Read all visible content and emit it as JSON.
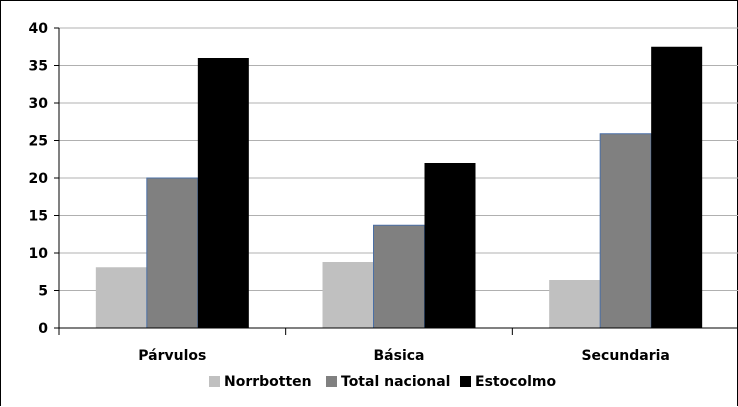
{
  "chart_data": {
    "type": "bar",
    "title": "",
    "xlabel": "",
    "ylabel": "",
    "categories": [
      "Párvulos",
      "Básica",
      "Secundaria"
    ],
    "series": [
      {
        "name": "Norrbotten",
        "values": [
          8.1,
          8.8,
          6.4
        ],
        "color": "#c0c0c0"
      },
      {
        "name": "Total nacional",
        "values": [
          20,
          13.7,
          25.9
        ],
        "color": "#808080"
      },
      {
        "name": "Estocolmo",
        "values": [
          36,
          22,
          37.5
        ],
        "color": "#000000"
      }
    ],
    "ylim": [
      0,
      40
    ],
    "yticks": [
      0,
      5,
      10,
      15,
      20,
      25,
      30,
      35,
      40
    ],
    "grid": true,
    "legend_position": "bottom"
  }
}
